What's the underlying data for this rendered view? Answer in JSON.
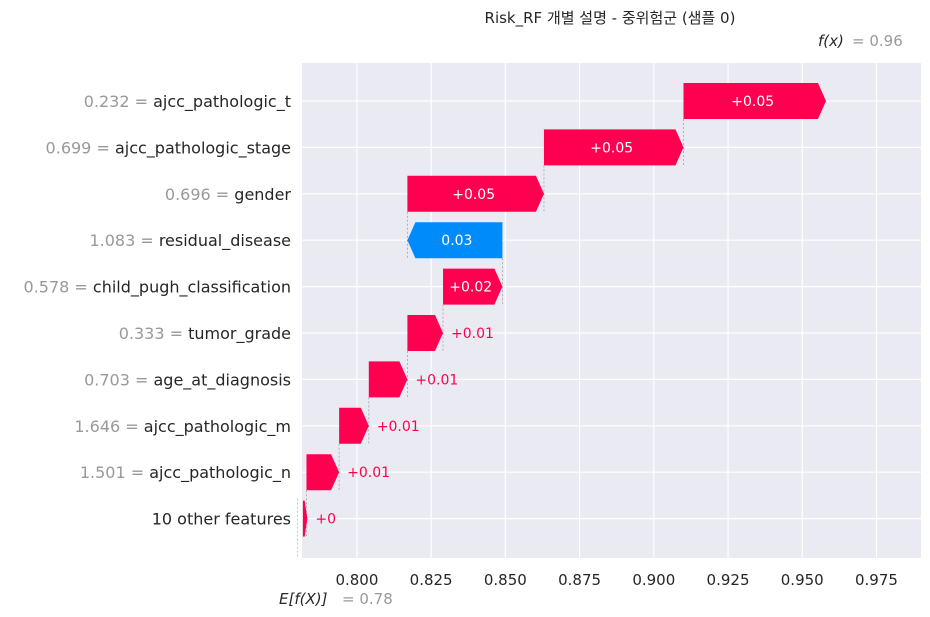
{
  "chart_data": {
    "type": "waterfall",
    "title": "Risk_RF 개별 설명 - 중위험군 (샘플 0)",
    "fx_label": "f(x)",
    "fx_value": "= 0.96",
    "ex_label": "E[f(X)]",
    "ex_value": "= 0.78",
    "base_value": 0.78,
    "final_value": 0.96,
    "xlim": [
      0.7815,
      0.99
    ],
    "ticks": [
      0.8,
      0.825,
      0.85,
      0.875,
      0.9,
      0.925,
      0.95,
      0.975
    ],
    "tick_labels": [
      "0.800",
      "0.825",
      "0.850",
      "0.875",
      "0.900",
      "0.925",
      "0.950",
      "0.975"
    ],
    "features": [
      {
        "value": "0.232",
        "name": "ajcc_pathologic_t",
        "start": 0.91,
        "end": 0.958,
        "label": "+0.05"
      },
      {
        "value": "0.699",
        "name": "ajcc_pathologic_stage",
        "start": 0.863,
        "end": 0.91,
        "label": "+0.05"
      },
      {
        "value": "0.696",
        "name": "gender",
        "start": 0.817,
        "end": 0.863,
        "label": "+0.05"
      },
      {
        "value": "1.083",
        "name": "residual_disease",
        "start": 0.849,
        "end": 0.817,
        "label": "0.03"
      },
      {
        "value": "0.578",
        "name": "child_pugh_classification",
        "start": 0.829,
        "end": 0.849,
        "label": "+0.02"
      },
      {
        "value": "0.333",
        "name": "tumor_grade",
        "start": 0.817,
        "end": 0.829,
        "label": "+0.01"
      },
      {
        "value": "0.703",
        "name": "age_at_diagnosis",
        "start": 0.804,
        "end": 0.817,
        "label": "+0.01"
      },
      {
        "value": "1.646",
        "name": "ajcc_pathologic_m",
        "start": 0.794,
        "end": 0.804,
        "label": "+0.01"
      },
      {
        "value": "1.501",
        "name": "ajcc_pathologic_n",
        "start": 0.783,
        "end": 0.794,
        "label": "+0.01"
      },
      {
        "value": "",
        "name": "10 other features",
        "start": 0.7818,
        "end": 0.7833,
        "label": "+0"
      }
    ],
    "colors": {
      "positive": "#ff0051",
      "negative": "#008bfb",
      "background": "#eaeaf2",
      "grid": "#ffffff"
    }
  }
}
